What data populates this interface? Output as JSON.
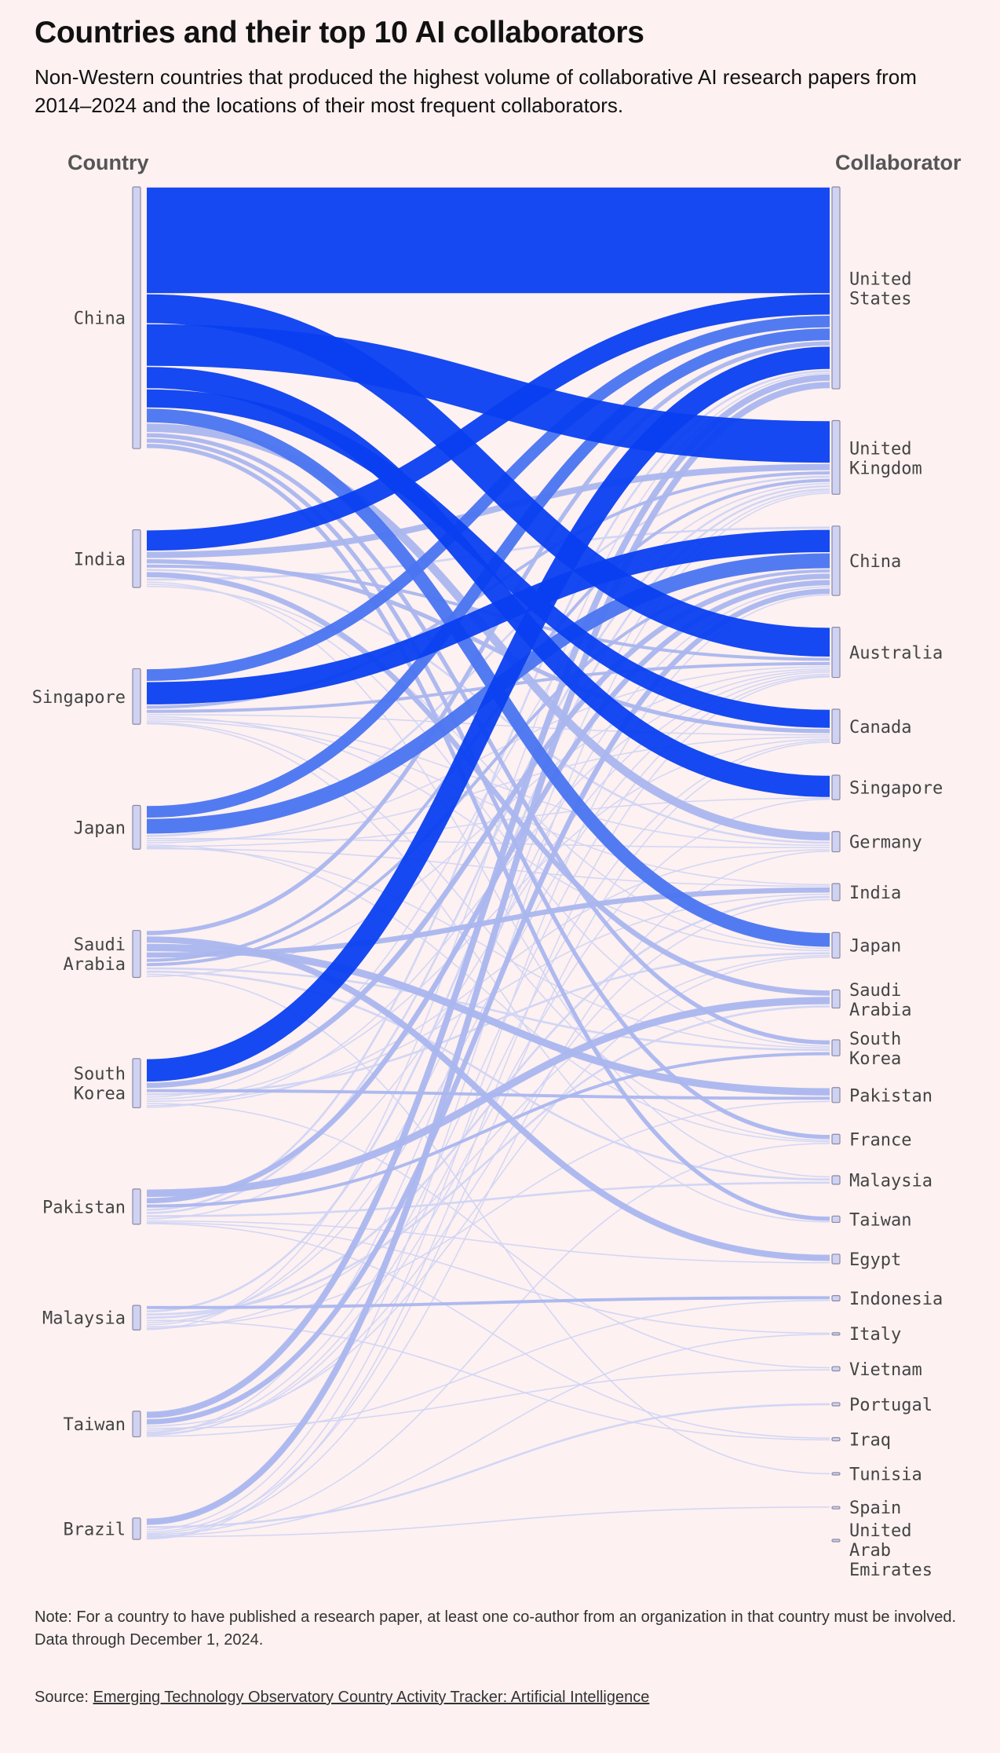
{
  "title": "Countries and their top 10 AI collaborators",
  "subtitle": "Non-Western countries that produced the highest volume of collaborative AI research papers from 2014–2024 and the locations of their most frequent collaborators.",
  "left_header": "Country",
  "right_header": "Collaborator",
  "note": "Note: For a country to have published a research paper, at least one co-author from an organization in that country must be involved. Data through December 1, 2024.",
  "source_label": "Source:",
  "source_link": "Emerging Technology Observatory Country Activity Tracker: Artificial Intelligence",
  "colors": {
    "background": "#fdf1f1",
    "strong": "#0a3ff0",
    "medium": "#4a74f0",
    "light": "#aab6ee",
    "faint": "#d0d4f4",
    "node": "#d0d2f2"
  },
  "chart_data": {
    "type": "sankey",
    "sources": [
      "China",
      "India",
      "Singapore",
      "Japan",
      "Saudi Arabia",
      "South Korea",
      "Pakistan",
      "Malaysia",
      "Taiwan",
      "Brazil"
    ],
    "targets": [
      "United States",
      "United Kingdom",
      "China",
      "Australia",
      "Canada",
      "Singapore",
      "Germany",
      "India",
      "Japan",
      "Saudi Arabia",
      "South Korea",
      "Pakistan",
      "France",
      "Malaysia",
      "Taiwan",
      "Egypt",
      "Indonesia",
      "Italy",
      "Vietnam",
      "Portugal",
      "Iraq",
      "Tunisia",
      "Spain",
      "United Arab Emirates"
    ],
    "links": [
      {
        "source": "China",
        "target": "United States",
        "value": 100
      },
      {
        "source": "China",
        "target": "Australia",
        "value": 28
      },
      {
        "source": "China",
        "target": "United Kingdom",
        "value": 40
      },
      {
        "source": "China",
        "target": "Singapore",
        "value": 21
      },
      {
        "source": "China",
        "target": "Canada",
        "value": 18
      },
      {
        "source": "China",
        "target": "Japan",
        "value": 14
      },
      {
        "source": "China",
        "target": "Germany",
        "value": 9
      },
      {
        "source": "China",
        "target": "South Korea",
        "value": 5
      },
      {
        "source": "China",
        "target": "France",
        "value": 5
      },
      {
        "source": "China",
        "target": "Taiwan",
        "value": 5
      },
      {
        "source": "India",
        "target": "United States",
        "value": 20
      },
      {
        "source": "India",
        "target": "United Kingdom",
        "value": 7
      },
      {
        "source": "India",
        "target": "Canada",
        "value": 5
      },
      {
        "source": "India",
        "target": "Australia",
        "value": 4
      },
      {
        "source": "India",
        "target": "Germany",
        "value": 3
      },
      {
        "source": "India",
        "target": "Saudi Arabia",
        "value": 6
      },
      {
        "source": "India",
        "target": "China",
        "value": 3
      },
      {
        "source": "India",
        "target": "Malaysia",
        "value": 2
      },
      {
        "source": "India",
        "target": "South Korea",
        "value": 2
      },
      {
        "source": "India",
        "target": "Japan",
        "value": 2
      },
      {
        "source": "Singapore",
        "target": "United States",
        "value": 12
      },
      {
        "source": "Singapore",
        "target": "China",
        "value": 22
      },
      {
        "source": "Singapore",
        "target": "United Kingdom",
        "value": 4
      },
      {
        "source": "Singapore",
        "target": "Australia",
        "value": 4
      },
      {
        "source": "Singapore",
        "target": "Canada",
        "value": 2
      },
      {
        "source": "Singapore",
        "target": "Japan",
        "value": 2
      },
      {
        "source": "Singapore",
        "target": "Germany",
        "value": 2
      },
      {
        "source": "Singapore",
        "target": "India",
        "value": 2
      },
      {
        "source": "Singapore",
        "target": "France",
        "value": 1
      },
      {
        "source": "Singapore",
        "target": "Taiwan",
        "value": 1
      },
      {
        "source": "Japan",
        "target": "United States",
        "value": 12
      },
      {
        "source": "Japan",
        "target": "China",
        "value": 15
      },
      {
        "source": "Japan",
        "target": "United Kingdom",
        "value": 3
      },
      {
        "source": "Japan",
        "target": "Germany",
        "value": 2
      },
      {
        "source": "Japan",
        "target": "Canada",
        "value": 2
      },
      {
        "source": "Japan",
        "target": "Australia",
        "value": 2
      },
      {
        "source": "Japan",
        "target": "France",
        "value": 2
      },
      {
        "source": "Japan",
        "target": "Singapore",
        "value": 1
      },
      {
        "source": "Japan",
        "target": "South Korea",
        "value": 1
      },
      {
        "source": "Japan",
        "target": "India",
        "value": 1
      },
      {
        "source": "Saudi Arabia",
        "target": "United States",
        "value": 5
      },
      {
        "source": "Saudi Arabia",
        "target": "Egypt",
        "value": 7
      },
      {
        "source": "Saudi Arabia",
        "target": "Pakistan",
        "value": 8
      },
      {
        "source": "Saudi Arabia",
        "target": "India",
        "value": 6
      },
      {
        "source": "Saudi Arabia",
        "target": "United Kingdom",
        "value": 4
      },
      {
        "source": "Saudi Arabia",
        "target": "China",
        "value": 4
      },
      {
        "source": "Saudi Arabia",
        "target": "South Korea",
        "value": 3
      },
      {
        "source": "Saudi Arabia",
        "target": "Malaysia",
        "value": 3
      },
      {
        "source": "Saudi Arabia",
        "target": "Tunisia",
        "value": 2
      },
      {
        "source": "Saudi Arabia",
        "target": "Australia",
        "value": 2
      },
      {
        "source": "South Korea",
        "target": "United States",
        "value": 22
      },
      {
        "source": "South Korea",
        "target": "China",
        "value": 6
      },
      {
        "source": "South Korea",
        "target": "Pakistan",
        "value": 4
      },
      {
        "source": "South Korea",
        "target": "Japan",
        "value": 3
      },
      {
        "source": "South Korea",
        "target": "United Kingdom",
        "value": 2
      },
      {
        "source": "South Korea",
        "target": "Canada",
        "value": 2
      },
      {
        "source": "South Korea",
        "target": "India",
        "value": 2
      },
      {
        "source": "South Korea",
        "target": "Vietnam",
        "value": 2
      },
      {
        "source": "South Korea",
        "target": "Germany",
        "value": 2
      },
      {
        "source": "South Korea",
        "target": "Australia",
        "value": 1
      },
      {
        "source": "Pakistan",
        "target": "Saudi Arabia",
        "value": 8
      },
      {
        "source": "Pakistan",
        "target": "China",
        "value": 6
      },
      {
        "source": "Pakistan",
        "target": "South Korea",
        "value": 4
      },
      {
        "source": "Pakistan",
        "target": "United States",
        "value": 3
      },
      {
        "source": "Pakistan",
        "target": "United Kingdom",
        "value": 3
      },
      {
        "source": "Pakistan",
        "target": "Malaysia",
        "value": 3
      },
      {
        "source": "Pakistan",
        "target": "Australia",
        "value": 2
      },
      {
        "source": "Pakistan",
        "target": "Egypt",
        "value": 2
      },
      {
        "source": "Pakistan",
        "target": "Italy",
        "value": 1
      },
      {
        "source": "Pakistan",
        "target": "Iraq",
        "value": 1
      },
      {
        "source": "Malaysia",
        "target": "Indonesia",
        "value": 4
      },
      {
        "source": "Malaysia",
        "target": "United Kingdom",
        "value": 3
      },
      {
        "source": "Malaysia",
        "target": "Saudi Arabia",
        "value": 3
      },
      {
        "source": "Malaysia",
        "target": "India",
        "value": 3
      },
      {
        "source": "Malaysia",
        "target": "Iraq",
        "value": 2
      },
      {
        "source": "Malaysia",
        "target": "Australia",
        "value": 2
      },
      {
        "source": "Malaysia",
        "target": "China",
        "value": 2
      },
      {
        "source": "Malaysia",
        "target": "Pakistan",
        "value": 2
      },
      {
        "source": "Malaysia",
        "target": "Japan",
        "value": 1
      },
      {
        "source": "Malaysia",
        "target": "United States",
        "value": 1
      },
      {
        "source": "Taiwan",
        "target": "United States",
        "value": 7
      },
      {
        "source": "Taiwan",
        "target": "China",
        "value": 6
      },
      {
        "source": "Taiwan",
        "target": "Japan",
        "value": 2
      },
      {
        "source": "Taiwan",
        "target": "Vietnam",
        "value": 2
      },
      {
        "source": "Taiwan",
        "target": "India",
        "value": 2
      },
      {
        "source": "Taiwan",
        "target": "Australia",
        "value": 1
      },
      {
        "source": "Taiwan",
        "target": "United Kingdom",
        "value": 1
      },
      {
        "source": "Taiwan",
        "target": "Singapore",
        "value": 1
      },
      {
        "source": "Taiwan",
        "target": "Canada",
        "value": 1
      },
      {
        "source": "Taiwan",
        "target": "Indonesia",
        "value": 1
      },
      {
        "source": "Brazil",
        "target": "United States",
        "value": 7
      },
      {
        "source": "Brazil",
        "target": "Portugal",
        "value": 3
      },
      {
        "source": "Brazil",
        "target": "United Kingdom",
        "value": 2
      },
      {
        "source": "Brazil",
        "target": "Canada",
        "value": 2
      },
      {
        "source": "Brazil",
        "target": "Germany",
        "value": 1
      },
      {
        "source": "Brazil",
        "target": "France",
        "value": 1
      },
      {
        "source": "Brazil",
        "target": "Italy",
        "value": 1
      },
      {
        "source": "Brazil",
        "target": "Spain",
        "value": 1
      },
      {
        "source": "Brazil",
        "target": "China",
        "value": 1
      },
      {
        "source": "Brazil",
        "target": "Australia",
        "value": 1
      }
    ]
  }
}
